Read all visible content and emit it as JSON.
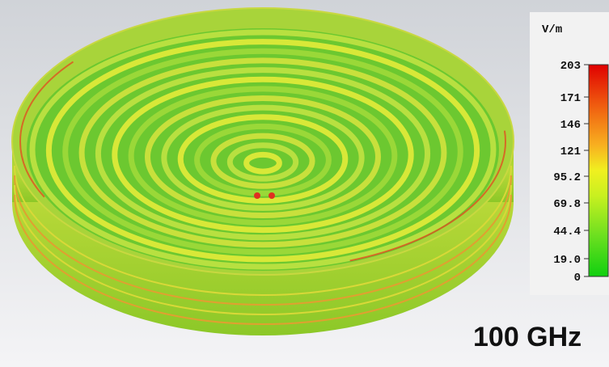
{
  "colorbar": {
    "unit": "V/m",
    "ticks": [
      "203",
      "171",
      "146",
      "121",
      "95.2",
      "69.8",
      "44.4",
      "19.0",
      "0"
    ]
  },
  "frequency_label": "100 GHz"
}
